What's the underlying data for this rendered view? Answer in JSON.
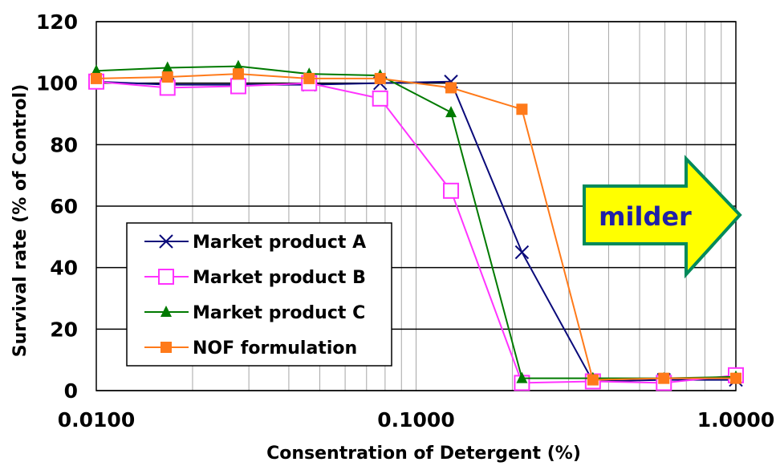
{
  "chart_data": {
    "type": "line",
    "xscale": "log",
    "xlim": [
      0.01,
      1.0
    ],
    "ylim": [
      0,
      120
    ],
    "xlabel": "Consentration of Detergent (%)",
    "ylabel": "Survival rate (% of Control)",
    "x_tick_labels": [
      "0.0100",
      "0.1000",
      "1.0000"
    ],
    "y_tick_labels": [
      "0",
      "20",
      "40",
      "60",
      "80",
      "100",
      "120"
    ],
    "grid": true,
    "legend_position": "lower-left",
    "annotation": {
      "text": "milder",
      "fill": "#ffff00",
      "border": "#008a5a",
      "text_color": "#1f1fa8"
    },
    "series": [
      {
        "name": "Market product A",
        "color": "#0a0a7a",
        "marker": "x",
        "x": [
          0.01,
          0.0167,
          0.0278,
          0.0463,
          0.0772,
          0.1286,
          0.2143,
          0.3572,
          0.5954,
          1.0
        ],
        "y": [
          100.5,
          99.5,
          99.5,
          99.5,
          100.0,
          100.5,
          45.0,
          3.0,
          3.5,
          3.5
        ]
      },
      {
        "name": "Market product B",
        "color": "#ff33ff",
        "marker": "square-open",
        "x": [
          0.01,
          0.0167,
          0.0278,
          0.0463,
          0.0772,
          0.1286,
          0.2143,
          0.3572,
          0.5954,
          1.0
        ],
        "y": [
          100.5,
          98.5,
          99.0,
          100.0,
          95.0,
          65.0,
          2.5,
          3.0,
          2.5,
          5.0
        ]
      },
      {
        "name": "Market product C",
        "color": "#007a00",
        "marker": "triangle",
        "x": [
          0.01,
          0.0167,
          0.0278,
          0.0463,
          0.0772,
          0.1286,
          0.2143,
          0.3572,
          0.5954,
          1.0
        ],
        "y": [
          104.0,
          105.0,
          105.5,
          103.0,
          102.5,
          90.5,
          4.0,
          4.0,
          4.0,
          4.5
        ]
      },
      {
        "name": "NOF formulation",
        "color": "#ff7a1a",
        "marker": "square",
        "x": [
          0.01,
          0.0167,
          0.0278,
          0.0463,
          0.0772,
          0.1286,
          0.2143,
          0.3572,
          0.5954,
          1.0
        ],
        "y": [
          101.5,
          102.0,
          103.0,
          101.5,
          101.5,
          98.5,
          91.5,
          3.5,
          4.0,
          4.0
        ]
      }
    ]
  }
}
